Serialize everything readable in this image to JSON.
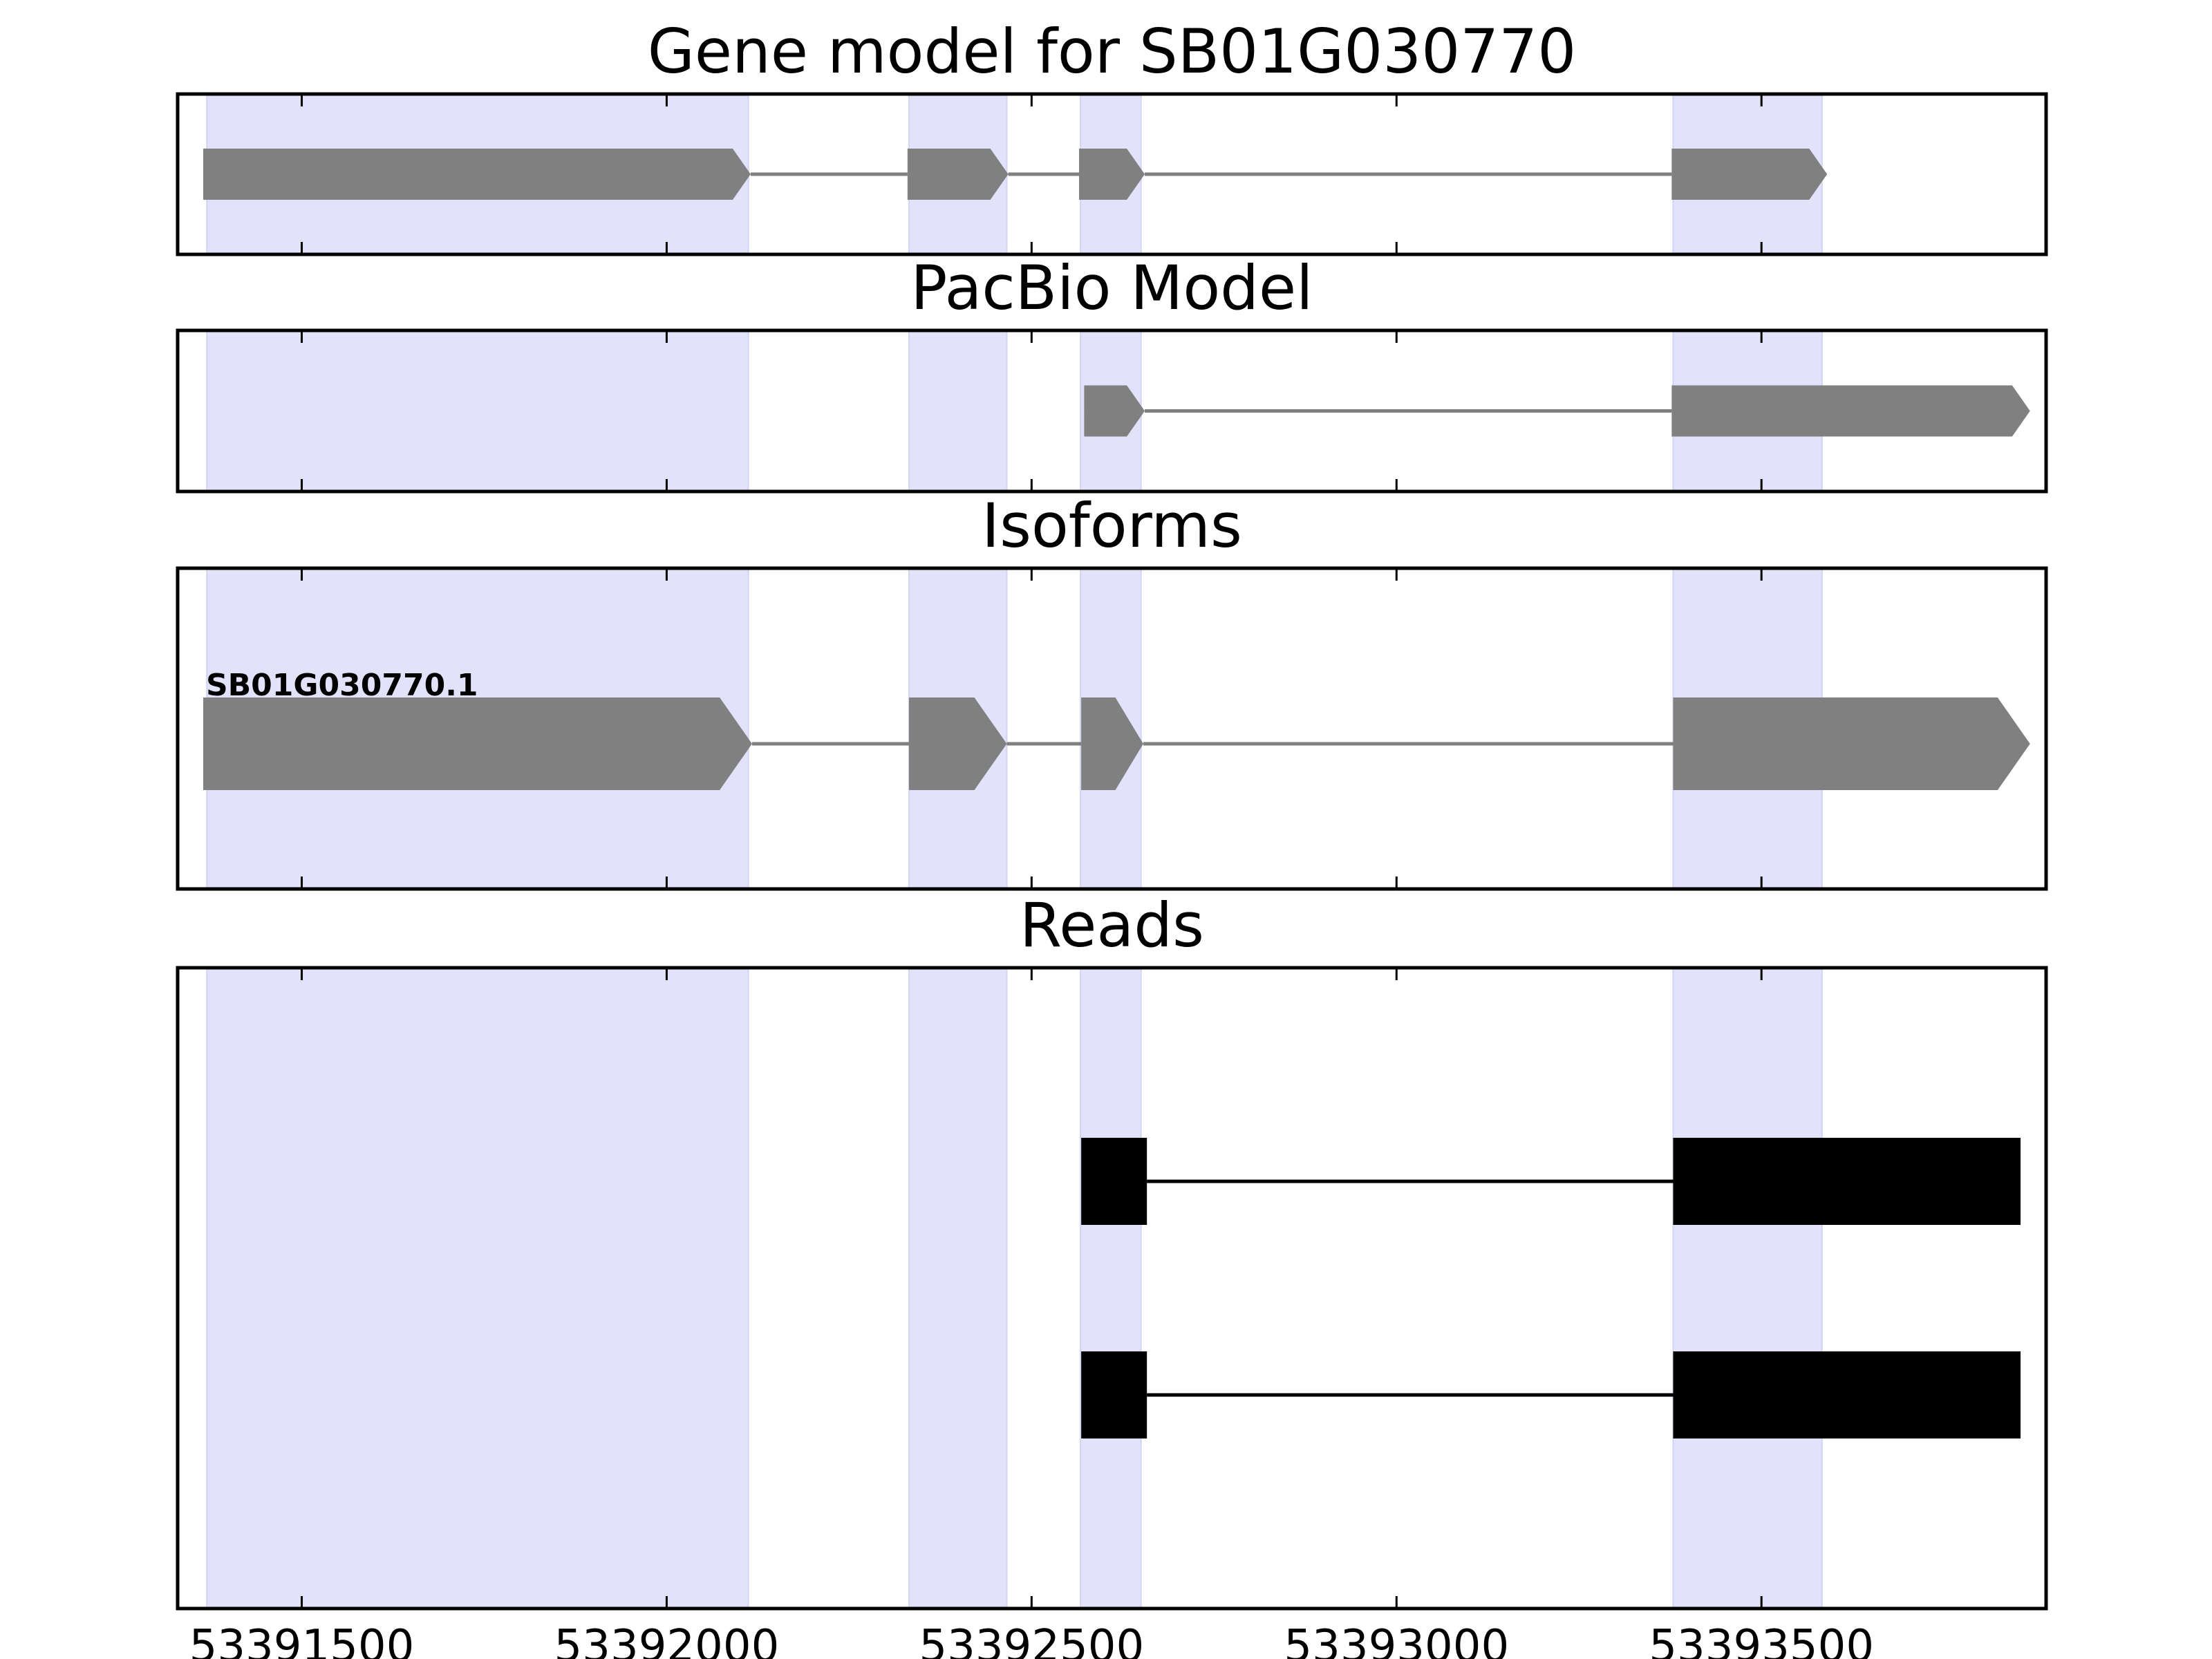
{
  "chart_data": {
    "type": "gene_model_tracks",
    "x_range": [
      53391330,
      53393890
    ],
    "x_ticks": [
      53391500,
      53392000,
      53392500,
      53393000,
      53393500
    ],
    "highlight_color": "#e2e3fb",
    "highlight_regions": [
      [
        53391370,
        53392112
      ],
      [
        53392332,
        53392466
      ],
      [
        53392567,
        53392650
      ],
      [
        53393379,
        53393583
      ]
    ],
    "tracks": [
      {
        "title": "Gene model for SB01G030770",
        "color": "#808080",
        "style": "arrow",
        "transcripts": [
          {
            "label": "",
            "exons": [
              [
                53391365,
                53392115
              ],
              [
                53392330,
                53392468
              ],
              [
                53392565,
                53392655
              ],
              [
                53393377,
                53393590
              ]
            ]
          }
        ]
      },
      {
        "title": "PacBio Model",
        "color": "#808080",
        "style": "arrow",
        "transcripts": [
          {
            "label": "",
            "exons": [
              [
                53392572,
                53392655
              ],
              [
                53393377,
                53393868
              ]
            ]
          }
        ]
      },
      {
        "title": "Isoforms",
        "color": "#808080",
        "style": "arrow",
        "transcripts": [
          {
            "label": "SB01G030770.1",
            "exons": [
              [
                53391365,
                53392117
              ],
              [
                53392332,
                53392466
              ],
              [
                53392568,
                53392653
              ],
              [
                53393379,
                53393868
              ]
            ]
          }
        ]
      },
      {
        "title": "Reads",
        "color": "#000000",
        "style": "block",
        "transcripts": [
          {
            "label": "",
            "exons": [
              [
                53392568,
                53392658
              ],
              [
                53393379,
                53393855
              ]
            ]
          },
          {
            "label": "",
            "exons": [
              [
                53392568,
                53392658
              ],
              [
                53393379,
                53393855
              ]
            ]
          }
        ]
      }
    ]
  }
}
